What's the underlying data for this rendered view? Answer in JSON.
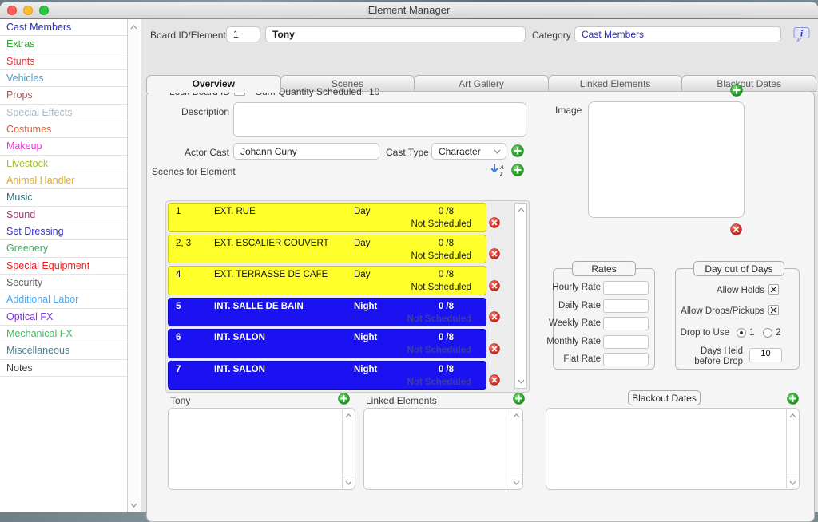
{
  "window": {
    "title": "Element Manager"
  },
  "header": {
    "board_id_label": "Board ID/Element",
    "board_id_value": "1",
    "element_name": "Tony",
    "category_label": "Category",
    "category_value": "Cast Members"
  },
  "icons": {
    "add": "plus-circle",
    "remove": "x-circle",
    "info": "speech-bubble-i",
    "sort": "sort-a-z"
  },
  "colors": {
    "accent_green": "#2fae2f",
    "delete_red": "#e23b2e",
    "day_row": "#ffff2b",
    "night_row": "#1a12f0",
    "category_text": "#2a2ab8"
  },
  "sidebar": {
    "items": [
      {
        "label": "Cast Members",
        "color": "#2929b8"
      },
      {
        "label": "Extras",
        "color": "#33a33a"
      },
      {
        "label": "Stunts",
        "color": "#e62e33"
      },
      {
        "label": "Vehicles",
        "color": "#4f9fc4"
      },
      {
        "label": "Props",
        "color": "#a36060"
      },
      {
        "label": "Special Effects",
        "color": "#a9bac9"
      },
      {
        "label": "Costumes",
        "color": "#f2562e"
      },
      {
        "label": "Makeup",
        "color": "#e63ad0"
      },
      {
        "label": "Livestock",
        "color": "#a9bf29"
      },
      {
        "label": "Animal Handler",
        "color": "#eaa929"
      },
      {
        "label": "Music",
        "color": "#33707f"
      },
      {
        "label": "Sound",
        "color": "#9a3f6f"
      },
      {
        "label": "Set Dressing",
        "color": "#2f2fe6"
      },
      {
        "label": "Greenery",
        "color": "#3fa95f"
      },
      {
        "label": "Special Equipment",
        "color": "#ef1f1f"
      },
      {
        "label": "Security",
        "color": "#5f5f5f"
      },
      {
        "label": "Additional Labor",
        "color": "#4fa9f2"
      },
      {
        "label": "Optical FX",
        "color": "#7f2fe6"
      },
      {
        "label": "Mechanical FX",
        "color": "#3fbf5f"
      },
      {
        "label": "Miscellaneous",
        "color": "#4f7f8f"
      },
      {
        "label": "Notes",
        "color": "#3f3f3f"
      }
    ]
  },
  "tabs": [
    {
      "label": "Overview",
      "active": true
    },
    {
      "label": "Scenes",
      "active": false
    },
    {
      "label": "Art Gallery",
      "active": false
    },
    {
      "label": "Linked Elements",
      "active": false
    },
    {
      "label": "Blackout Dates",
      "active": false
    }
  ],
  "overview": {
    "lock_board_id_label": "Lock Board ID",
    "lock_board_id_checked": false,
    "sum_quantity_label": "Sum Quantity Scheduled:",
    "sum_quantity_value": "10",
    "description_label": "Description",
    "description_value": "",
    "actor_cast_label": "Actor Cast",
    "actor_cast_value": "Johann Cuny",
    "cast_type_label": "Cast Type",
    "cast_type_value": "Character",
    "scenes_label": "Scenes for Element",
    "scenes": [
      {
        "numbers": "1",
        "set": "EXT. RUE",
        "time": "Day",
        "pages": "0 /8",
        "status": "Not Scheduled",
        "type": "day"
      },
      {
        "numbers": "2, 3",
        "set": "EXT. ESCALIER COUVERT",
        "time": "Day",
        "pages": "0 /8",
        "status": "Not Scheduled",
        "type": "day"
      },
      {
        "numbers": "4",
        "set": "EXT. TERRASSE DE CAFE",
        "time": "Day",
        "pages": "0 /8",
        "status": "Not Scheduled",
        "type": "day"
      },
      {
        "numbers": "5",
        "set": "INT. SALLE DE BAIN",
        "time": "Night",
        "pages": "0 /8",
        "status": "Not Scheduled",
        "type": "night"
      },
      {
        "numbers": "6",
        "set": "INT. SALON",
        "time": "Night",
        "pages": "0 /8",
        "status": "Not Scheduled",
        "type": "night"
      },
      {
        "numbers": "7",
        "set": "INT. SALON",
        "time": "Night",
        "pages": "0 /8",
        "status": "Not Scheduled",
        "type": "night"
      }
    ],
    "image_label": "Image",
    "rates": {
      "title": "Rates",
      "fields": [
        {
          "label": "Hourly Rate",
          "value": ""
        },
        {
          "label": "Daily Rate",
          "value": ""
        },
        {
          "label": "Weekly Rate",
          "value": ""
        },
        {
          "label": "Monthly Rate",
          "value": ""
        },
        {
          "label": "Flat Rate",
          "value": ""
        }
      ]
    },
    "day_out_of_days": {
      "title": "Day out of Days",
      "allow_holds_label": "Allow Holds",
      "allow_holds_checked": true,
      "allow_drops_label": "Allow Drops/Pickups",
      "allow_drops_checked": true,
      "drop_to_use_label": "Drop to Use",
      "drop_options": [
        "1",
        "2"
      ],
      "drop_selected": "1",
      "days_held_label_line1": "Days Held",
      "days_held_label_line2": "before Drop",
      "days_held_value": "10"
    },
    "bottom": {
      "element_list_title": "Tony",
      "linked_elements_title": "Linked Elements",
      "blackout_dates_title": "Blackout Dates"
    }
  }
}
